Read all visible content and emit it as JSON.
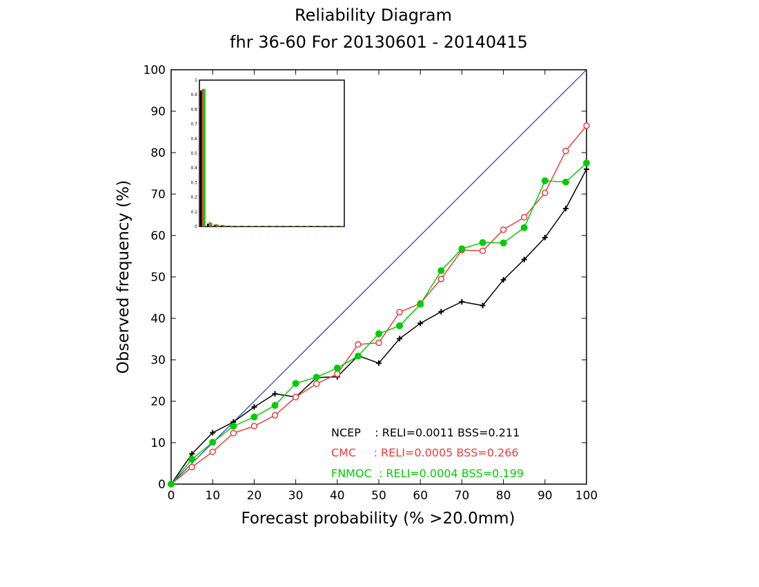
{
  "chart_data": {
    "type": "line",
    "title": "Reliability Diagram",
    "subtitle": "fhr 36-60 For 20130601 - 20140415",
    "xlabel": "Forecast probability (% >20.0mm)",
    "ylabel": "Observed frequency (%)",
    "xlim": [
      0,
      100
    ],
    "ylim": [
      0,
      100
    ],
    "xticks": [
      "0",
      "10",
      "20",
      "30",
      "40",
      "50",
      "60",
      "70",
      "80",
      "90",
      "100"
    ],
    "yticks": [
      "0",
      "10",
      "20",
      "30",
      "40",
      "50",
      "60",
      "70",
      "80",
      "90",
      "100"
    ],
    "grid": false,
    "diagonal": {
      "from": [
        0,
        0
      ],
      "to": [
        100,
        100
      ],
      "color": "#2233aa"
    },
    "series": [
      {
        "name": "NCEP",
        "color": "#000000",
        "marker": "plus",
        "x": [
          0,
          5,
          10,
          15,
          20,
          25,
          30,
          35,
          40,
          45,
          50,
          55,
          60,
          65,
          70,
          75,
          80,
          85,
          90,
          95,
          100
        ],
        "y": [
          0,
          7.3,
          12.4,
          15.0,
          18.6,
          21.8,
          21.0,
          25.7,
          25.9,
          31.0,
          29.2,
          35.1,
          38.8,
          41.6,
          44.0,
          43.1,
          49.3,
          54.2,
          59.5,
          66.5,
          76.0
        ]
      },
      {
        "name": "CMC",
        "color": "#ee3b3b",
        "marker": "open-circle",
        "x": [
          0,
          5,
          10,
          15,
          20,
          25,
          30,
          35,
          40,
          45,
          50,
          55,
          60,
          65,
          70,
          75,
          80,
          85,
          90,
          95,
          100
        ],
        "y": [
          0,
          4.1,
          7.8,
          12.3,
          14.0,
          16.6,
          21.0,
          24.2,
          26.6,
          33.7,
          34.1,
          41.5,
          43.6,
          49.5,
          56.5,
          56.3,
          61.4,
          64.4,
          70.3,
          80.4,
          86.5
        ]
      },
      {
        "name": "FNMOC",
        "color": "#00cc00",
        "marker": "filled-circle",
        "x": [
          0,
          5,
          10,
          15,
          20,
          25,
          30,
          35,
          40,
          45,
          50,
          55,
          60,
          65,
          70,
          75,
          80,
          85,
          90,
          95,
          100
        ],
        "y": [
          0,
          6.0,
          10.1,
          14.0,
          16.2,
          19.0,
          24.3,
          25.8,
          28.0,
          30.9,
          36.3,
          38.2,
          43.4,
          51.5,
          56.8,
          58.3,
          58.2,
          61.9,
          73.2,
          72.9,
          77.5
        ]
      }
    ],
    "legend": {
      "placement": "bottom-right",
      "entries": [
        {
          "name": "NCEP",
          "text": "NCEP    : RELI=0.0011 BSS=0.211",
          "color": "#000000"
        },
        {
          "name": "CMC",
          "text": "CMC     : RELI=0.0005 BSS=0.266",
          "color": "#ee3b3b"
        },
        {
          "name": "FNMOC",
          "text": "FNMOC  : RELI=0.0004 BSS=0.199",
          "color": "#00cc00"
        }
      ]
    },
    "inset": {
      "type": "bar",
      "placement": "top-left",
      "ylim": [
        0,
        1
      ],
      "yticks": [
        "0",
        "0.1",
        "0.2",
        "0.3",
        "0.4",
        "0.5",
        "0.6",
        "0.7",
        "0.8",
        "0.9",
        "1"
      ],
      "bins": [
        0,
        5,
        10,
        15,
        20,
        25,
        30,
        35,
        40,
        45,
        50,
        55,
        60,
        65,
        70,
        75,
        80,
        85,
        90,
        95,
        100
      ],
      "series": [
        {
          "name": "NCEP",
          "color": "#000000",
          "values": [
            0.93,
            0.02,
            0.012,
            0.008,
            0.005,
            0.004,
            0.003,
            0.003,
            0.002,
            0.002,
            0.002,
            0.002,
            0.002,
            0.002,
            0.001,
            0.001,
            0.001,
            0.001,
            0.001,
            0.001,
            0.001
          ]
        },
        {
          "name": "CMC",
          "color": "#ee3b3b",
          "values": [
            0.94,
            0.03,
            0.016,
            0.01,
            0.006,
            0.004,
            0.003,
            0.003,
            0.002,
            0.002,
            0.002,
            0.002,
            0.002,
            0.001,
            0.001,
            0.001,
            0.001,
            0.001,
            0.001,
            0.001,
            0.001
          ]
        },
        {
          "name": "FNMOC",
          "color": "#00cc00",
          "values": [
            0.94,
            0.025,
            0.012,
            0.007,
            0.004,
            0.003,
            0.003,
            0.002,
            0.002,
            0.002,
            0.002,
            0.001,
            0.001,
            0.001,
            0.001,
            0.001,
            0.001,
            0.001,
            0.001,
            0.001,
            0.001
          ]
        }
      ]
    }
  }
}
